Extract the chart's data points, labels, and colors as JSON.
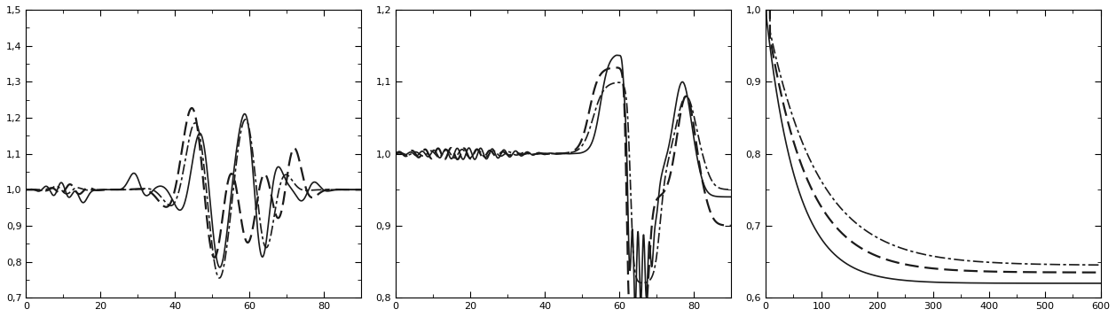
{
  "panel1": {
    "xlim": [
      0,
      90
    ],
    "ylim": [
      0.7,
      1.5
    ],
    "yticks": [
      0.7,
      0.8,
      0.9,
      1.0,
      1.1,
      1.2,
      1.3,
      1.4,
      1.5
    ],
    "xticks": [
      0,
      20,
      40,
      60,
      80
    ],
    "ytick_labels": [
      "0,7",
      "0,8",
      "0,9",
      "1,0",
      "1,1",
      "1,2",
      "1,3",
      "1,4",
      "1,5"
    ]
  },
  "panel2": {
    "xlim": [
      0,
      90
    ],
    "ylim": [
      0.8,
      1.2
    ],
    "yticks": [
      0.8,
      0.9,
      1.0,
      1.1,
      1.2
    ],
    "xticks": [
      0,
      20,
      40,
      60,
      80
    ],
    "ytick_labels": [
      "0,8",
      "0,9",
      "1,0",
      "1,1",
      "1,2"
    ]
  },
  "panel3": {
    "xlim": [
      0,
      600
    ],
    "ylim": [
      0.6,
      1.0
    ],
    "yticks": [
      0.6,
      0.7,
      0.8,
      0.9,
      1.0
    ],
    "xticks": [
      0,
      100,
      200,
      300,
      400,
      500,
      600
    ],
    "ytick_labels": [
      "0,6",
      "0,7",
      "0,8",
      "0,9",
      "1,0"
    ]
  },
  "line_color": "#1a1a1a",
  "linewidth": 1.2
}
